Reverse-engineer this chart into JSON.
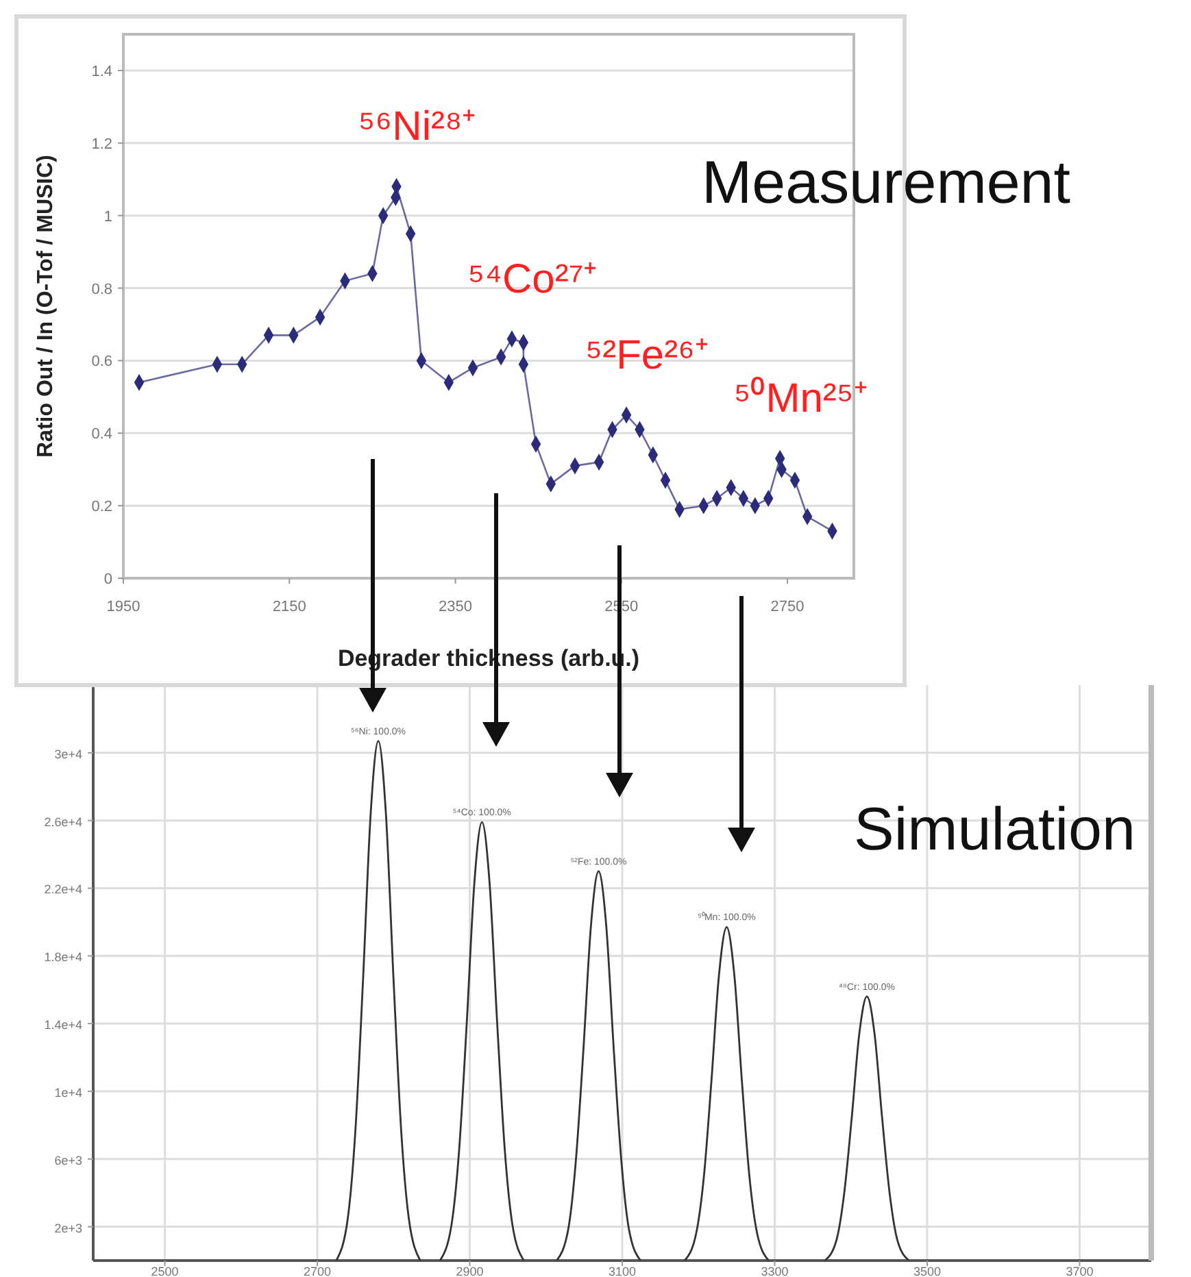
{
  "chart_data": [
    {
      "type": "line",
      "title": "Measurement",
      "xlabel": "Degrader thickness (arb.u.)",
      "ylabel": "Ratio Out / In (O-Tof / MUSIC)",
      "xlim": [
        1950,
        2830
      ],
      "ylim": [
        0,
        1.5
      ],
      "xticks": [
        1950,
        2150,
        2350,
        2550,
        2750
      ],
      "yticks": [
        0,
        0.2,
        0.4,
        0.6,
        0.8,
        1,
        1.2,
        1.4
      ],
      "grid": "y",
      "marker": "diamond",
      "x": [
        1969,
        2063,
        2093,
        2125,
        2155,
        2187,
        2217,
        2250,
        2263,
        2278,
        2279,
        2296,
        2309,
        2342,
        2371,
        2405,
        2418,
        2432,
        2432,
        2447,
        2465,
        2494,
        2523,
        2539,
        2556,
        2572,
        2588,
        2603,
        2620,
        2649,
        2665,
        2682,
        2697,
        2711,
        2727,
        2741,
        2743,
        2759,
        2774,
        2804
      ],
      "series": [
        {
          "color": "#2b2b7a",
          "values": [
            0.54,
            0.59,
            0.59,
            0.67,
            0.67,
            0.72,
            0.82,
            0.84,
            1.0,
            1.05,
            1.08,
            0.95,
            0.6,
            0.54,
            0.58,
            0.61,
            0.66,
            0.65,
            0.59,
            0.37,
            0.26,
            0.31,
            0.32,
            0.41,
            0.45,
            0.41,
            0.34,
            0.27,
            0.19,
            0.2,
            0.22,
            0.25,
            0.22,
            0.2,
            0.22,
            0.33,
            0.3,
            0.27,
            0.17,
            0.13
          ]
        }
      ],
      "annotations": [
        {
          "text": "⁵⁶Ni²⁸⁺",
          "x": 2279,
          "y": 1.08
        },
        {
          "text": "⁵⁴Co²⁷⁺",
          "x": 2418,
          "y": 0.66
        },
        {
          "text": "⁵²Fe²⁶⁺",
          "x": 2556,
          "y": 0.45
        },
        {
          "text": "⁵⁰Mn²⁵⁺",
          "x": 2741,
          "y": 0.33
        }
      ]
    },
    {
      "type": "line",
      "title": "Simulation",
      "xlim": [
        2406,
        3794
      ],
      "ylim": [
        0,
        34000
      ],
      "xticks": [
        2500,
        2700,
        2900,
        3100,
        3300,
        3500,
        3700
      ],
      "yticks": [
        {
          "value": 2000,
          "label": "2e+3"
        },
        {
          "value": 6000,
          "label": "6e+3"
        },
        {
          "value": 10000,
          "label": "1e+4"
        },
        {
          "value": 14000,
          "label": "1.4e+4"
        },
        {
          "value": 18000,
          "label": "1.8e+4"
        },
        {
          "value": 22000,
          "label": "2.2e+4"
        },
        {
          "value": 26000,
          "label": "2.6e+4"
        },
        {
          "value": 30000,
          "label": "3e+4"
        }
      ],
      "grid": true,
      "series": [
        {
          "color": "#333333",
          "x": [
            2725,
            2740,
            2750,
            2760,
            2770,
            2780,
            2790,
            2800,
            2810,
            2820,
            2835
          ],
          "values": [
            0,
            2500,
            7700,
            16600,
            26400,
            30700,
            26400,
            16600,
            7700,
            2500,
            0
          ]
        },
        {
          "color": "#333333",
          "x": [
            2861,
            2876,
            2886,
            2896,
            2906,
            2916,
            2926,
            2936,
            2946,
            2956,
            2971
          ],
          "values": [
            0,
            2100,
            6500,
            14000,
            22300,
            25900,
            22300,
            14000,
            6500,
            2100,
            0
          ]
        },
        {
          "color": "#333333",
          "x": [
            3014,
            3029,
            3039,
            3049,
            3059,
            3069,
            3079,
            3089,
            3099,
            3109,
            3124
          ],
          "values": [
            0,
            1800,
            5800,
            12400,
            19800,
            23000,
            19800,
            12400,
            5800,
            1800,
            0
          ]
        },
        {
          "color": "#333333",
          "x": [
            3182,
            3197,
            3207,
            3217,
            3227,
            3237,
            3247,
            3257,
            3267,
            3277,
            3292
          ],
          "values": [
            0,
            1600,
            4900,
            10600,
            16900,
            19700,
            16900,
            10600,
            4900,
            1600,
            0
          ]
        },
        {
          "color": "#333333",
          "x": [
            3366,
            3381,
            3391,
            3401,
            3411,
            3421,
            3431,
            3441,
            3451,
            3461,
            3476
          ],
          "values": [
            0,
            1200,
            3900,
            8400,
            13400,
            15600,
            13400,
            8400,
            3900,
            1200,
            0
          ]
        }
      ],
      "annotations": [
        {
          "text": "⁵⁶Ni: 100.0%",
          "x": 2780,
          "y": 30700
        },
        {
          "text": "⁵⁴Co: 100.0%",
          "x": 2916,
          "y": 25900
        },
        {
          "text": "⁵²Fe: 100.0%",
          "x": 3069,
          "y": 23000
        },
        {
          "text": "⁵⁰Mn: 100.0%",
          "x": 3237,
          "y": 19700
        },
        {
          "text": "⁴⁸Cr: 100.0%",
          "x": 3421,
          "y": 15600
        }
      ]
    }
  ]
}
